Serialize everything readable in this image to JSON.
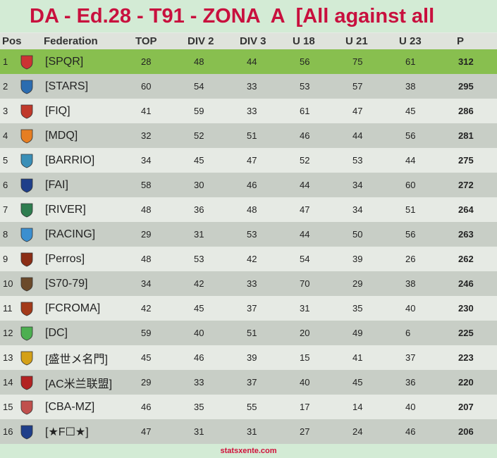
{
  "header": {
    "title": "DA - Ed.28 - T91 - ZONA  A  [All against all"
  },
  "table": {
    "columns": [
      "Pos",
      "Federation",
      "TOP",
      "DIV 2",
      "DIV 3",
      "U 18",
      "U 21",
      "U 23",
      "P"
    ],
    "rows": [
      [
        1,
        "[SPQR]",
        28,
        48,
        44,
        56,
        75,
        61,
        312
      ],
      [
        2,
        "[STARS]",
        60,
        54,
        33,
        53,
        57,
        38,
        295
      ],
      [
        3,
        "[FIQ]",
        41,
        59,
        33,
        61,
        47,
        45,
        286
      ],
      [
        4,
        "[MDQ]",
        32,
        52,
        51,
        46,
        44,
        56,
        281
      ],
      [
        5,
        "[BARRIO]",
        34,
        45,
        47,
        52,
        53,
        44,
        275
      ],
      [
        6,
        "[FAI]",
        58,
        30,
        46,
        44,
        34,
        60,
        272
      ],
      [
        7,
        "[RIVER]",
        48,
        36,
        48,
        47,
        34,
        51,
        264
      ],
      [
        8,
        "[RACING]",
        29,
        31,
        53,
        44,
        50,
        56,
        263
      ],
      [
        9,
        "[Perros]",
        48,
        53,
        42,
        54,
        39,
        26,
        262
      ],
      [
        10,
        "[S70-79]",
        34,
        42,
        33,
        70,
        29,
        38,
        246
      ],
      [
        11,
        "[FCROMA]",
        42,
        45,
        37,
        31,
        35,
        40,
        230
      ],
      [
        12,
        "[DC]",
        59,
        40,
        51,
        20,
        49,
        6,
        225
      ],
      [
        13,
        "[盛世メ名門]",
        45,
        46,
        39,
        15,
        41,
        37,
        223
      ],
      [
        14,
        "[AC米兰联盟]",
        29,
        33,
        37,
        40,
        45,
        36,
        220
      ],
      [
        15,
        "[CBA-MZ]",
        46,
        35,
        55,
        17,
        14,
        40,
        207
      ],
      [
        16,
        "[★F☐★]",
        47,
        31,
        31,
        27,
        24,
        46,
        206
      ]
    ]
  },
  "footer": {
    "text": "statsxente.com"
  }
}
